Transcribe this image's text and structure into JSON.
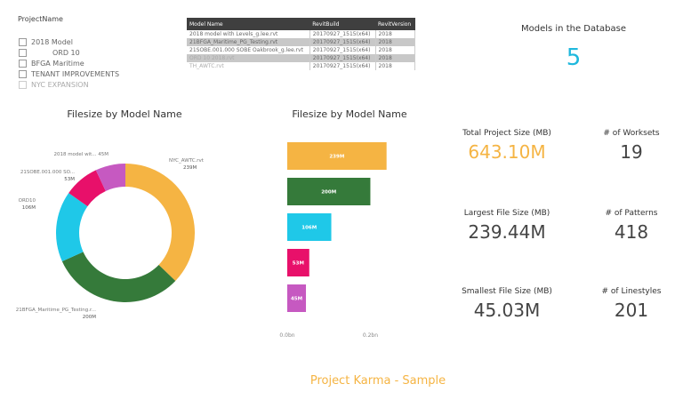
{
  "slicer": {
    "title": "ProjectName",
    "items": [
      "2018 Model",
      "ORD 10",
      "BFGA Maritime",
      "TENANT IMPROVEMENTS",
      "NYC EXPANSION"
    ]
  },
  "table": {
    "headers": [
      "Model Name",
      "RevitBuild",
      "RevitVersion"
    ],
    "rows": [
      [
        "2018 model with Levels_g.lee.rvt",
        "20170927_1515(x64)",
        "2018"
      ],
      [
        "21BFGA_Maritime_PG_Testing.rvt",
        "20170927_1515(x64)",
        "2018"
      ],
      [
        "21SOBE.001.000 SOBE Oakbrook_g.lee.rvt",
        "20170927_1515(x64)",
        "2018"
      ],
      [
        "ORD 10 2018.rvt",
        "20170927_1515(x64)",
        "2018"
      ],
      [
        "TH_AWTC.rvt",
        "20170927_1515(x64)",
        "2018"
      ]
    ]
  },
  "models_card": {
    "label": "Models in the Database",
    "value": "5"
  },
  "colors": {
    "orange": "#F5B443",
    "green": "#357A3A",
    "cyan": "#1FC8E8",
    "pink": "#E8106A",
    "purple": "#C659C1",
    "accent": "#F5B443",
    "cyan_text": "#1FB8DD"
  },
  "chart_data": [
    {
      "type": "pie",
      "title": "Filesize by Model Name",
      "donut": true,
      "slices": [
        {
          "label": "NYC_AWTC.rvt",
          "value_label": "239M",
          "value": 239,
          "color": "#F5B443"
        },
        {
          "label": "21BFGA_Maritime_PG_Testing.r...",
          "value_label": "200M",
          "value": 200,
          "color": "#357A3A"
        },
        {
          "label": "ORD10",
          "value_label": "106M",
          "value": 106,
          "color": "#1FC8E8"
        },
        {
          "label": "21SOBE.001.000 SO...",
          "value_label": "53M",
          "value": 53,
          "color": "#E8106A"
        },
        {
          "label": "2018 model wit...",
          "value_label": "45M",
          "value": 45,
          "color": "#C659C1"
        }
      ]
    },
    {
      "type": "bar",
      "orientation": "horizontal",
      "title": "Filesize by Model Name",
      "values": [
        239,
        200,
        106,
        53,
        45
      ],
      "labels": [
        "239M",
        "200M",
        "106M",
        "53M",
        "45M"
      ],
      "colors": [
        "#F5B443",
        "#357A3A",
        "#1FC8E8",
        "#E8106A",
        "#C659C1"
      ],
      "xticks": [
        "0.0bn",
        "0.2bn"
      ],
      "xtick_values": [
        0,
        200
      ]
    }
  ],
  "kpis": [
    {
      "label": "Total Project Size (MB)",
      "value": "643.10M",
      "accent": true
    },
    {
      "label": "# of Worksets",
      "value": "19"
    },
    {
      "label": "Largest File Size (MB)",
      "value": "239.44M"
    },
    {
      "label": "# of Patterns",
      "value": "418"
    },
    {
      "label": "Smallest File Size (MB)",
      "value": "45.03M"
    },
    {
      "label": "# of Linestyles",
      "value": "201"
    }
  ],
  "footer": "Project Karma - Sample"
}
